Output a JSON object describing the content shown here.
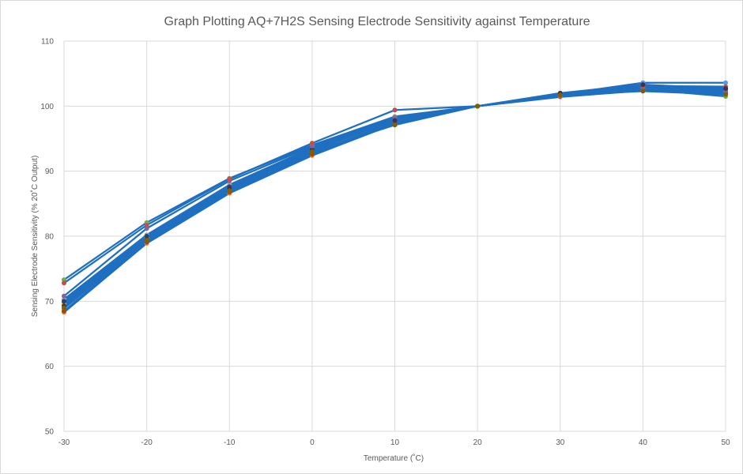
{
  "chart_data": {
    "type": "line",
    "title": "Graph Plotting AQ+7H2S Sensing Electrode Sensitivity against Temperature",
    "xlabel": "Temperature (˚C)",
    "ylabel": "Sensing Electrode Sensitivity (% 20˚C Output)",
    "x": [
      -30,
      -20,
      -10,
      0,
      10,
      20,
      30,
      40,
      50
    ],
    "xlim": [
      -30,
      50
    ],
    "ylim": [
      50,
      110
    ],
    "xticks": [
      "-30",
      "-20",
      "-10",
      "0",
      "10",
      "20",
      "30",
      "40",
      "50"
    ],
    "yticks": [
      "50",
      "60",
      "70",
      "80",
      "90",
      "100",
      "110"
    ],
    "grid": true,
    "line_color": "#1f6fc1",
    "series": [
      {
        "color": "#5b9bd5",
        "values": [
          69.8,
          79.6,
          87.5,
          93.4,
          98.0,
          100,
          101.8,
          103.6,
          103.6
        ]
      },
      {
        "color": "#ed7d31",
        "values": [
          68.3,
          78.9,
          86.6,
          92.4,
          97.3,
          100,
          101.4,
          102.4,
          101.9
        ]
      },
      {
        "color": "#a5a5a5",
        "values": [
          70.3,
          80.2,
          87.9,
          93.6,
          98.3,
          100,
          101.9,
          103.2,
          102.8
        ]
      },
      {
        "color": "#ffc000",
        "values": [
          69.5,
          79.8,
          87.2,
          93.1,
          97.9,
          100,
          101.7,
          102.9,
          102.5
        ]
      },
      {
        "color": "#4472c4",
        "values": [
          68.9,
          79.3,
          86.9,
          92.8,
          97.6,
          100,
          101.6,
          102.7,
          102.2
        ]
      },
      {
        "color": "#70ad47",
        "values": [
          73.3,
          82.1,
          88.9,
          94.0,
          98.4,
          100,
          101.6,
          102.6,
          101.5
        ]
      },
      {
        "color": "#264478",
        "values": [
          70.0,
          80.0,
          87.6,
          93.5,
          98.1,
          100,
          101.8,
          103.0,
          102.6
        ]
      },
      {
        "color": "#9e480e",
        "values": [
          68.5,
          79.1,
          86.8,
          92.6,
          97.4,
          100,
          101.6,
          102.5,
          102.0
        ]
      },
      {
        "color": "#8064a2",
        "values": [
          70.8,
          81.2,
          88.5,
          93.8,
          98.2,
          100,
          101.5,
          102.8,
          102.3
        ]
      },
      {
        "color": "#c0504d",
        "values": [
          72.8,
          81.7,
          88.8,
          94.3,
          99.4,
          100,
          101.9,
          103.1,
          103.0
        ]
      },
      {
        "color": "#403151",
        "values": [
          69.3,
          79.5,
          87.3,
          93.2,
          97.8,
          100,
          102.0,
          103.3,
          102.7
        ]
      },
      {
        "color": "#7f6000",
        "values": [
          69.0,
          79.4,
          87.0,
          93.0,
          97.1,
          100,
          101.7,
          102.3,
          101.8
        ]
      }
    ]
  }
}
